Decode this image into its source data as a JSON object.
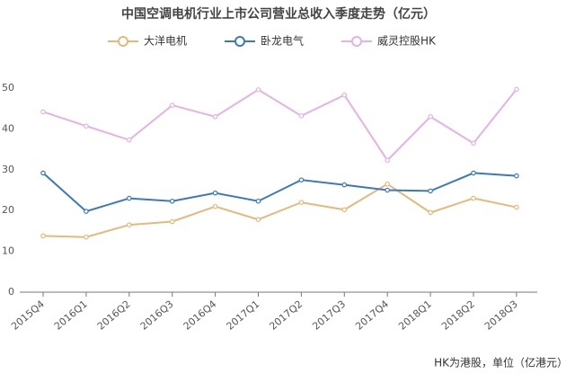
{
  "chart_data": {
    "type": "line",
    "title": "中国空调电机行业上市公司营业总收入季度走势（亿元）",
    "categories": [
      "2015Q4",
      "2016Q1",
      "2016Q2",
      "2016Q3",
      "2016Q4",
      "2017Q1",
      "2017Q2",
      "2017Q3",
      "2017Q4",
      "2018Q1",
      "2018Q2",
      "2018Q3"
    ],
    "series": [
      {
        "name": "大洋电机",
        "color": "#e8b878",
        "values": [
          13.8,
          13.5,
          16.5,
          17.3,
          21,
          17.8,
          22,
          20.2,
          26.5,
          19.5,
          23,
          20.8
        ]
      },
      {
        "name": "卧龙电气",
        "color": "#3a78c3",
        "values": [
          29.2,
          19.8,
          23,
          22.3,
          24.3,
          22.3,
          27.5,
          26.3,
          25,
          24.8,
          29.2,
          28.5
        ]
      },
      {
        "name": "威灵控股HK",
        "color": "#e4b2e4",
        "values": [
          44.2,
          40.7,
          37.3,
          45.8,
          43,
          49.6,
          43.2,
          48.3,
          32.3,
          43,
          36.5,
          49.7
        ]
      }
    ],
    "ylim": [
      0,
      50
    ],
    "yticks": [
      0,
      10,
      20,
      30,
      40,
      50
    ],
    "grid": false,
    "note": "HK为港股，单位（亿港元）"
  }
}
